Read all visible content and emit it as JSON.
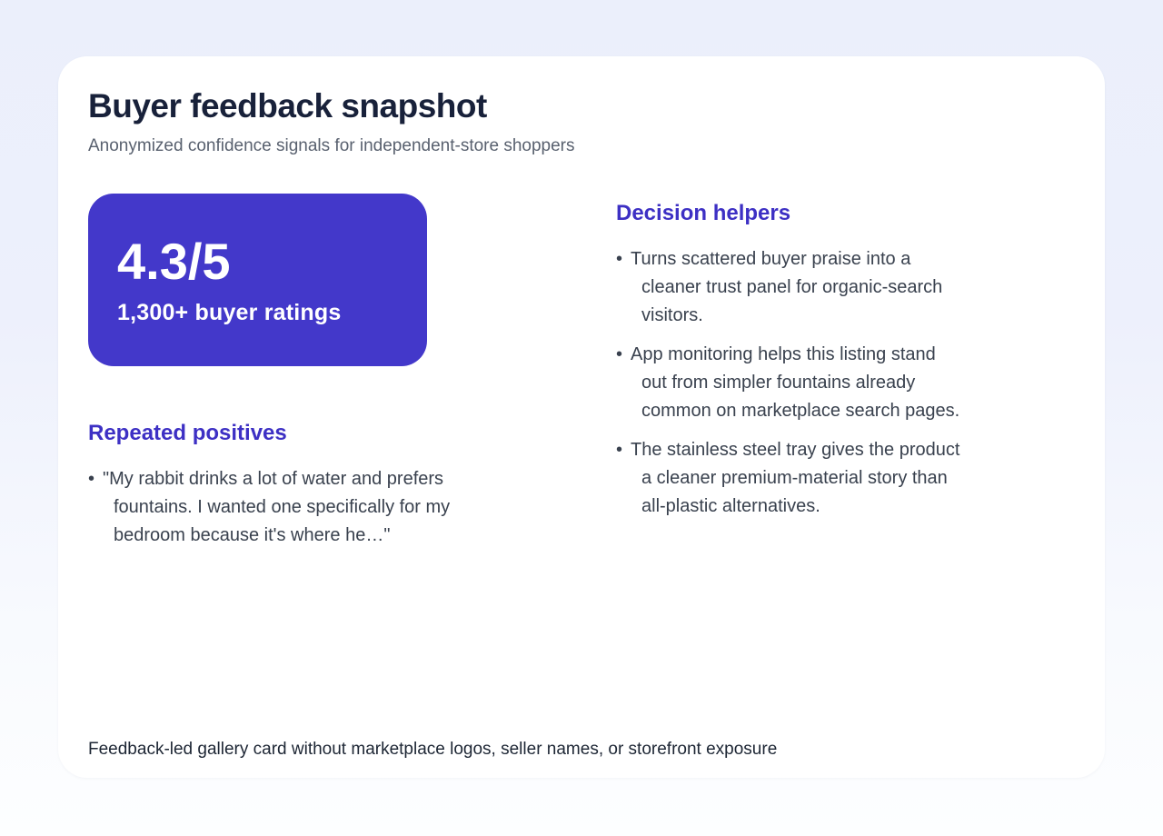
{
  "theme": {
    "background_top": "#ebeffb",
    "background_bottom": "#fdfeff",
    "card_background": "#ffffff",
    "accent_purple": "#4338ca",
    "heading_purple": "#3d30c4",
    "title_color": "#18213a",
    "subtitle_color": "#59616f",
    "body_text_color": "#39414e"
  },
  "glyphs": {
    "bullet": "•"
  },
  "card": {
    "title": "Buyer feedback snapshot",
    "subtitle": "Anonymized confidence signals for independent-store shoppers",
    "footer": "Feedback-led gallery card without marketplace logos, seller names, or storefront exposure"
  },
  "rating_badge": {
    "score": "4.3/5",
    "caption": "1,300+ buyer ratings"
  },
  "repeated_positives": {
    "heading": "Repeated positives",
    "items": [
      "\"My rabbit drinks a lot of water and prefers\nfountains. I wanted one specifically for my\nbedroom because it's where he…\""
    ]
  },
  "decision_helpers": {
    "heading": "Decision helpers",
    "items": [
      "Turns scattered buyer praise into a\ncleaner trust panel for organic-search\nvisitors.",
      "App monitoring helps this listing stand\nout from simpler fountains already\ncommon on marketplace search pages.",
      "The stainless steel tray gives the product\na cleaner premium-material story than\nall-plastic alternatives."
    ]
  }
}
